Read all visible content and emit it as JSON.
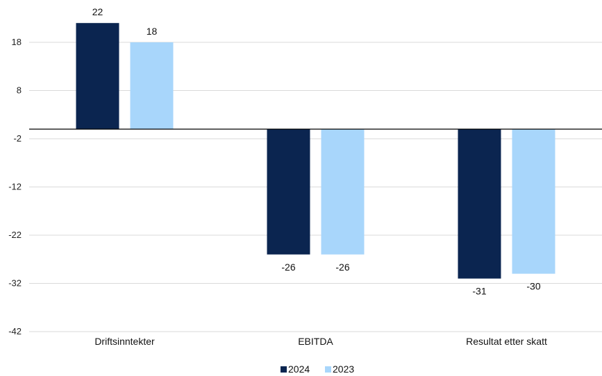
{
  "chart_data": {
    "type": "bar",
    "categories": [
      "Driftsinntekter",
      "EBITDA",
      "Resultat etter skatt"
    ],
    "series": [
      {
        "name": "2024",
        "values": [
          22,
          -26,
          -31
        ],
        "color": "#0b2550"
      },
      {
        "name": "2023",
        "values": [
          18,
          -26,
          -30
        ],
        "color": "#a8d6fb"
      }
    ],
    "data_labels": [
      [
        "22",
        "-26",
        "-31"
      ],
      [
        "18",
        "-26",
        "-30"
      ]
    ],
    "ylim": [
      -42,
      22
    ],
    "yticks": [
      18,
      8,
      -2,
      -12,
      -22,
      -32,
      -42
    ],
    "ytick_labels": [
      "18",
      "8",
      "-2",
      "-12",
      "-22",
      "-32",
      "-42"
    ],
    "grid": true,
    "legend_position": "bottom",
    "title": "",
    "xlabel": "",
    "ylabel": ""
  }
}
